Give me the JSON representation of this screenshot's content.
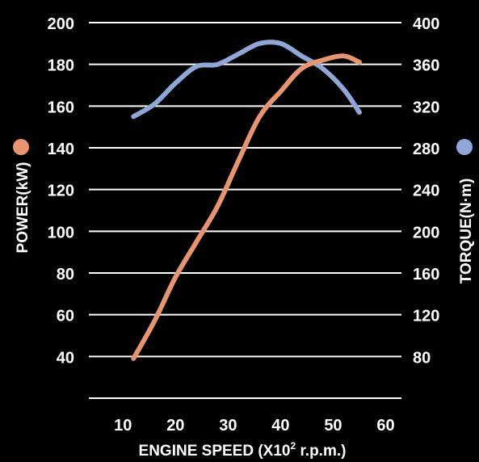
{
  "chart_data": {
    "type": "line",
    "title": "",
    "xlabel_main": "ENGINE SPEED (X10",
    "xlabel_sup": "2",
    "xlabel_tail": " r.p.m.)",
    "ylabel_left": "POWER(kW)",
    "ylabel_right": "TORQUE(N·m)",
    "xlim": [
      3.5,
      63
    ],
    "x_ticks": [
      "10",
      "20",
      "30",
      "40",
      "50",
      "60"
    ],
    "y_left_lim": [
      20,
      200
    ],
    "y_left_ticks": [
      "40",
      "60",
      "80",
      "100",
      "120",
      "140",
      "160",
      "180",
      "200"
    ],
    "y_right_lim": [
      40,
      400
    ],
    "y_right_ticks": [
      "80",
      "120",
      "160",
      "200",
      "240",
      "280",
      "320",
      "360",
      "400"
    ],
    "grid": true,
    "legend": "markers beside axis titles",
    "series": [
      {
        "axis": "left",
        "color": "#e8946f",
        "x": [
          12,
          16,
          20,
          24,
          28,
          32,
          36,
          40,
          44,
          48,
          52,
          55
        ],
        "y": [
          39,
          57,
          78,
          95,
          112,
          134,
          155,
          167,
          178,
          182,
          184,
          181
        ]
      },
      {
        "axis": "right",
        "color": "#8ea7d6",
        "x": [
          12,
          16,
          20,
          24,
          28,
          32,
          36,
          40,
          44,
          48,
          52,
          55
        ],
        "y": [
          310,
          322,
          342,
          358,
          360,
          370,
          380,
          380,
          368,
          356,
          336,
          314
        ]
      }
    ]
  }
}
